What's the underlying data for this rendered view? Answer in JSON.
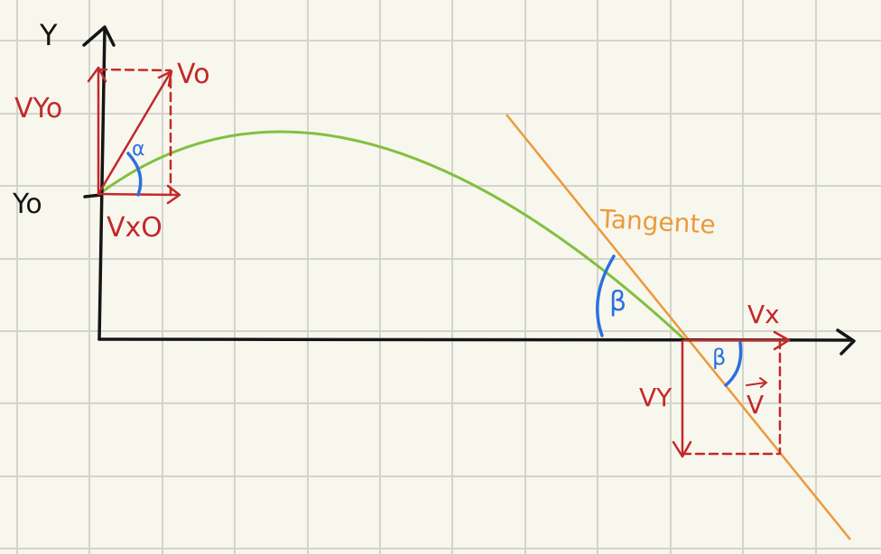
{
  "labels": {
    "y_axis": "Y",
    "y0": "Yo",
    "v0": "Vo",
    "vy0": "VYo",
    "vx0": "VxO",
    "alpha": "α",
    "tangent": "Tangente",
    "beta_upper": "β",
    "beta_lower": "β",
    "vx": "Vx",
    "vy": "VY",
    "v": "V"
  },
  "colors": {
    "background": "#f8f7ed",
    "grid": "#d4d4cf",
    "axes": "#151515",
    "vectors": "#c3282b",
    "trajectory": "#82c040",
    "tangent": "#eb9a3b",
    "angles": "#2c6fe0"
  }
}
